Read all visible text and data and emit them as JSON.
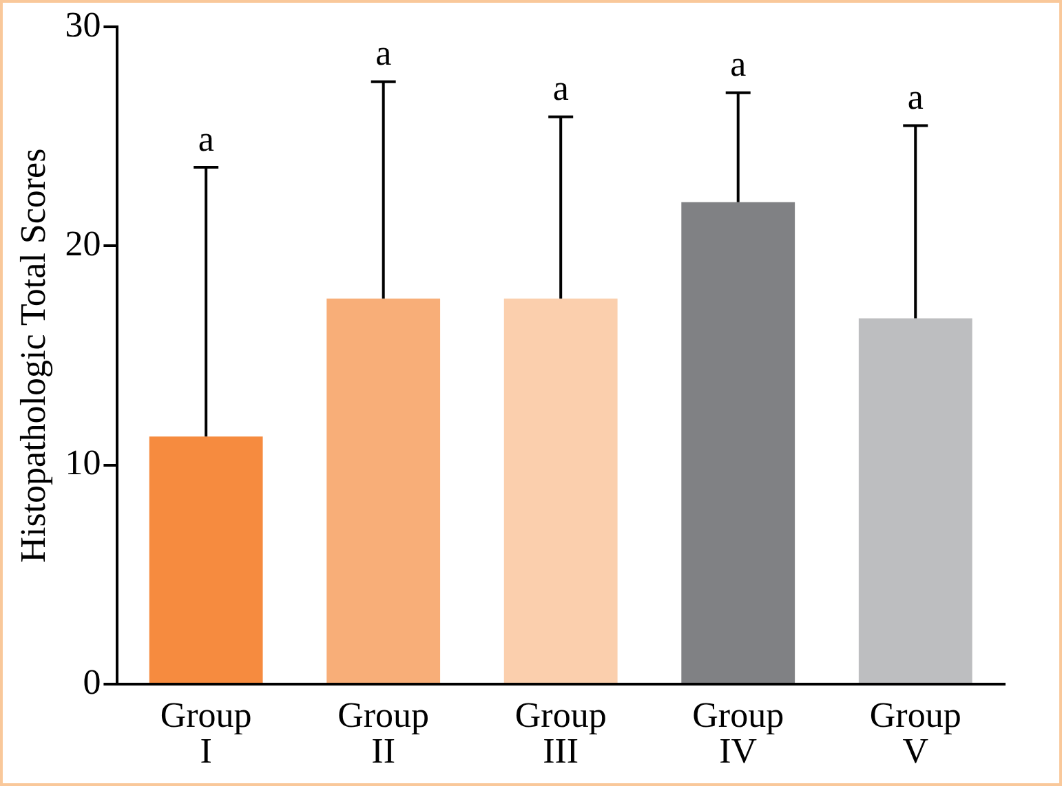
{
  "chart_data": {
    "type": "bar",
    "ylabel": "Histopathologic Total Scores",
    "categories": [
      "Group I",
      "Group II",
      "Group III",
      "Group IV",
      "Group V"
    ],
    "values": [
      11.3,
      17.6,
      17.6,
      22.0,
      16.7
    ],
    "colors": [
      "#f68b3f",
      "#f8ae78",
      "#fbcfad",
      "#808184",
      "#bdbec0"
    ],
    "errors": [
      12.3,
      9.9,
      8.3,
      5.0,
      8.8
    ],
    "ylim": [
      0,
      30
    ],
    "yticks": [
      0,
      10,
      20,
      30
    ],
    "grid": false,
    "legend": false,
    "annotations": [
      {
        "text": "a",
        "x": "Group I",
        "y": 23.6
      },
      {
        "text": "a",
        "x": "Group II",
        "y": 27.5
      },
      {
        "text": "a",
        "x": "Group III",
        "y": 25.9
      },
      {
        "text": "a",
        "x": "Group IV",
        "y": 27.0
      },
      {
        "text": "a",
        "x": "Group V",
        "y": 25.5
      }
    ]
  }
}
